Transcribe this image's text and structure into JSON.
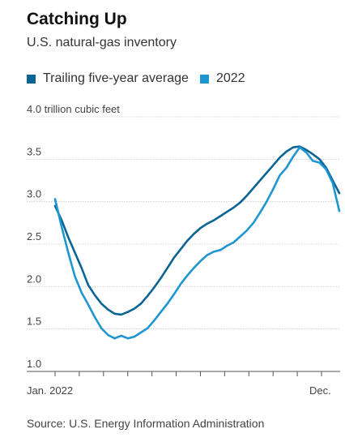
{
  "header": {
    "title": "Catching Up",
    "subtitle": "U.S. natural-gas inventory"
  },
  "legend": [
    {
      "label": "Trailing five-year average",
      "color": "#0a6494"
    },
    {
      "label": "2022",
      "color": "#1e96d2"
    }
  ],
  "source": "Source: U.S. Energy Information Administration",
  "chart_data": {
    "type": "line",
    "yunit_label": "4.0 trillion cubic feet",
    "ylim": [
      1.0,
      4.0
    ],
    "yticks": [
      1.0,
      1.5,
      2.0,
      2.5,
      3.0,
      3.5,
      4.0
    ],
    "ytick_labels": [
      "1.0",
      "1.5",
      "2.0",
      "2.5",
      "3.0",
      "3.5",
      "4.0 trillion cubic feet"
    ],
    "xlim": [
      0,
      52
    ],
    "x_tick_labels": [
      {
        "x": 0,
        "label": "Jan. 2022"
      },
      {
        "x": 48,
        "label": "Dec."
      }
    ],
    "x_tick_count": 12,
    "grid": true,
    "series": [
      {
        "name": "Trailing five-year average",
        "color": "#0a6494",
        "points": [
          [
            0,
            2.95
          ],
          [
            1,
            2.78
          ],
          [
            2,
            2.58
          ],
          [
            3,
            2.4
          ],
          [
            4,
            2.22
          ],
          [
            5,
            2.02
          ],
          [
            6,
            1.9
          ],
          [
            7,
            1.8
          ],
          [
            8,
            1.73
          ],
          [
            9,
            1.68
          ],
          [
            10,
            1.67
          ],
          [
            11,
            1.7
          ],
          [
            12,
            1.74
          ],
          [
            13,
            1.8
          ],
          [
            14,
            1.89
          ],
          [
            15,
            1.99
          ],
          [
            16,
            2.1
          ],
          [
            17,
            2.22
          ],
          [
            18,
            2.34
          ],
          [
            19,
            2.44
          ],
          [
            20,
            2.54
          ],
          [
            21,
            2.62
          ],
          [
            22,
            2.69
          ],
          [
            23,
            2.74
          ],
          [
            24,
            2.78
          ],
          [
            25,
            2.83
          ],
          [
            26,
            2.88
          ],
          [
            27,
            2.93
          ],
          [
            28,
            2.99
          ],
          [
            29,
            3.07
          ],
          [
            30,
            3.16
          ],
          [
            31,
            3.25
          ],
          [
            32,
            3.34
          ],
          [
            33,
            3.43
          ],
          [
            34,
            3.52
          ],
          [
            35,
            3.59
          ],
          [
            36,
            3.64
          ],
          [
            37,
            3.65
          ],
          [
            38,
            3.61
          ],
          [
            39,
            3.56
          ],
          [
            40,
            3.5
          ],
          [
            41,
            3.4
          ],
          [
            42,
            3.25
          ],
          [
            43,
            3.1
          ]
        ]
      },
      {
        "name": "2022",
        "color": "#1e96d2",
        "points": [
          [
            0,
            3.03
          ],
          [
            1,
            2.7
          ],
          [
            2,
            2.4
          ],
          [
            3,
            2.12
          ],
          [
            4,
            1.93
          ],
          [
            5,
            1.79
          ],
          [
            6,
            1.64
          ],
          [
            7,
            1.51
          ],
          [
            8,
            1.43
          ],
          [
            9,
            1.39
          ],
          [
            10,
            1.42
          ],
          [
            11,
            1.39
          ],
          [
            12,
            1.41
          ],
          [
            13,
            1.46
          ],
          [
            14,
            1.51
          ],
          [
            15,
            1.6
          ],
          [
            16,
            1.7
          ],
          [
            17,
            1.8
          ],
          [
            18,
            1.91
          ],
          [
            19,
            2.03
          ],
          [
            20,
            2.13
          ],
          [
            21,
            2.22
          ],
          [
            22,
            2.3
          ],
          [
            23,
            2.37
          ],
          [
            24,
            2.41
          ],
          [
            25,
            2.43
          ],
          [
            26,
            2.48
          ],
          [
            27,
            2.52
          ],
          [
            28,
            2.59
          ],
          [
            29,
            2.66
          ],
          [
            30,
            2.75
          ],
          [
            31,
            2.87
          ],
          [
            32,
            3.0
          ],
          [
            33,
            3.15
          ],
          [
            34,
            3.31
          ],
          [
            35,
            3.4
          ],
          [
            36,
            3.53
          ],
          [
            37,
            3.64
          ],
          [
            38,
            3.58
          ],
          [
            39,
            3.48
          ],
          [
            40,
            3.46
          ],
          [
            41,
            3.38
          ],
          [
            42,
            3.22
          ],
          [
            43,
            2.89
          ]
        ]
      }
    ]
  }
}
